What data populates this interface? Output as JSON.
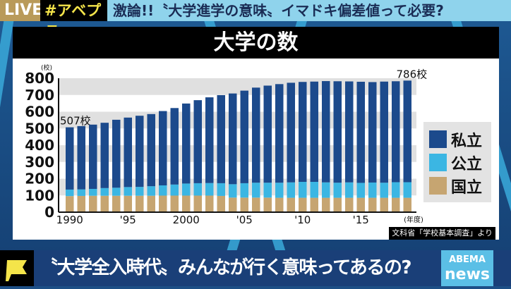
{
  "banner": {
    "live": "LIVE",
    "hashtag": "#アベプラ",
    "headline": "激論!!〝大学進学の意味〟イマドキ偏差値って必要?"
  },
  "panel_title": "大学の数",
  "chart_data": {
    "type": "bar",
    "stacked": true,
    "title": "大学の数",
    "ylabel": "(校)",
    "xlabel": "(年度)",
    "ylim": [
      0,
      800
    ],
    "yticks": [
      "0",
      "100",
      "200",
      "300",
      "400",
      "500",
      "600",
      "700",
      "800"
    ],
    "x": [
      1990,
      1991,
      1992,
      1993,
      1994,
      1995,
      1996,
      1997,
      1998,
      1999,
      2000,
      2001,
      2002,
      2003,
      2004,
      2005,
      2006,
      2007,
      2008,
      2009,
      2010,
      2011,
      2012,
      2013,
      2014,
      2015,
      2016,
      2017,
      2018,
      2019
    ],
    "xtick_labels": [
      {
        "year": 1990,
        "label": "1990"
      },
      {
        "year": 1995,
        "label": "'95"
      },
      {
        "year": 2000,
        "label": "2000"
      },
      {
        "year": 2005,
        "label": "'05"
      },
      {
        "year": 2010,
        "label": "'10"
      },
      {
        "year": 2015,
        "label": "'15"
      }
    ],
    "series": [
      {
        "name": "国立",
        "color": "#c6a571",
        "values": [
          96,
          97,
          98,
          98,
          98,
          98,
          98,
          98,
          99,
          99,
          99,
          99,
          99,
          97,
          87,
          87,
          87,
          87,
          86,
          86,
          86,
          86,
          86,
          86,
          86,
          86,
          86,
          86,
          86,
          86
        ]
      },
      {
        "name": "公立",
        "color": "#3bb6e3",
        "values": [
          39,
          39,
          41,
          46,
          48,
          52,
          53,
          57,
          61,
          66,
          72,
          74,
          75,
          76,
          80,
          86,
          89,
          89,
          90,
          92,
          95,
          95,
          92,
          90,
          92,
          89,
          91,
          90,
          93,
          93
        ]
      },
      {
        "name": "私立",
        "color": "#1c4a8c",
        "values": [
          372,
          378,
          384,
          390,
          406,
          415,
          425,
          431,
          444,
          457,
          478,
          496,
          512,
          526,
          542,
          553,
          568,
          580,
          589,
          595,
          597,
          599,
          605,
          606,
          603,
          604,
          600,
          604,
          603,
          607
        ]
      }
    ],
    "annotations": [
      {
        "year": 1990,
        "label": "507校"
      },
      {
        "year": 2019,
        "label": "786校"
      }
    ],
    "grid_bands": true,
    "legend_position": "right"
  },
  "credit": "文科省「学校基本調査」より",
  "bottom": {
    "caption": "〝大学全入時代〟みんなが行く意味ってあるの?",
    "logo_top": "ABEMA",
    "logo_bottom": "news"
  }
}
